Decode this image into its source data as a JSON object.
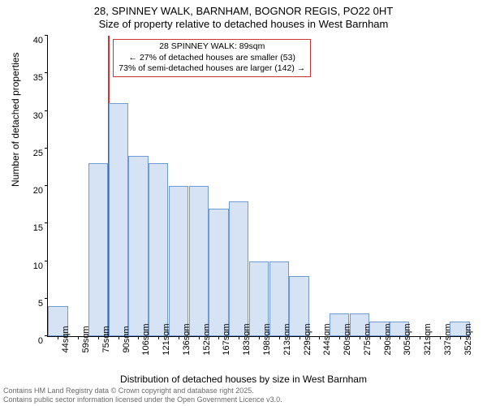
{
  "title": {
    "line1": "28, SPINNEY WALK, BARNHAM, BOGNOR REGIS, PO22 0HT",
    "line2": "Size of property relative to detached houses in West Barnham"
  },
  "chart": {
    "type": "histogram",
    "ylabel": "Number of detached properties",
    "xlabel": "Distribution of detached houses by size in West Barnham",
    "ylim": [
      0,
      40
    ],
    "ytick_step": 5,
    "yticks": [
      0,
      5,
      10,
      15,
      20,
      25,
      30,
      35,
      40
    ],
    "x_categories": [
      "44sqm",
      "59sqm",
      "75sqm",
      "90sqm",
      "106sqm",
      "121sqm",
      "136sqm",
      "152sqm",
      "167sqm",
      "183sqm",
      "198sqm",
      "213sqm",
      "229sqm",
      "244sqm",
      "260sqm",
      "275sqm",
      "290sqm",
      "305sqm",
      "321sqm",
      "337sqm",
      "352sqm"
    ],
    "values": [
      4,
      0,
      23,
      31,
      24,
      23,
      20,
      20,
      17,
      18,
      10,
      10,
      8,
      0,
      3,
      3,
      2,
      2,
      0,
      0,
      2
    ],
    "bar_fill": "#d5e3f5",
    "bar_border": "#6f9ad4",
    "background_color": "#ffffff",
    "axis_color": "#000000",
    "label_fontsize": 12,
    "tick_fontsize": 11,
    "title_fontsize": 13,
    "marker": {
      "position_index": 3,
      "color": "#cc3333"
    },
    "annotation": {
      "line1": "28 SPINNEY WALK: 89sqm",
      "line2": "← 27% of detached houses are smaller (53)",
      "line3": "73% of semi-detached houses are larger (142) →",
      "border_color": "#cc3333",
      "background_color": "#ffffff",
      "fontsize": 10.5
    }
  },
  "footer": {
    "line1": "Contains HM Land Registry data © Crown copyright and database right 2025.",
    "line2": "Contains public sector information licensed under the Open Government Licence v3.0.",
    "color": "#6a6a6a",
    "fontsize": 9
  }
}
